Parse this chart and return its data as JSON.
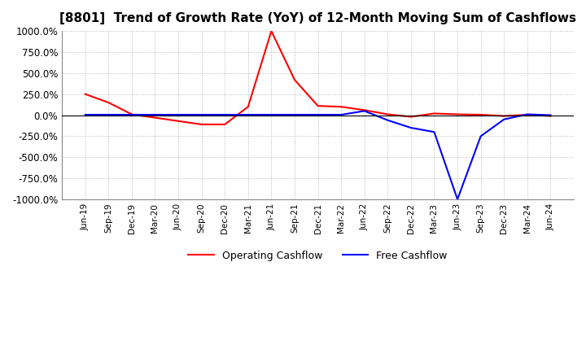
{
  "title": "[8801]  Trend of Growth Rate (YoY) of 12-Month Moving Sum of Cashflows",
  "title_fontsize": 11,
  "ylim": [
    -1000,
    1000
  ],
  "yticks": [
    1000,
    750,
    500,
    250,
    0,
    -250,
    -500,
    -750,
    -1000
  ],
  "background_color": "#ffffff",
  "plot_bg_color": "#ffffff",
  "grid_color": "#aaaaaa",
  "legend_labels": [
    "Operating Cashflow",
    "Free Cashflow"
  ],
  "legend_colors": [
    "#ff0000",
    "#0000ff"
  ],
  "x_labels": [
    "Jun-19",
    "Sep-19",
    "Dec-19",
    "Mar-20",
    "Jun-20",
    "Sep-20",
    "Dec-20",
    "Mar-21",
    "Jun-21",
    "Sep-21",
    "Dec-21",
    "Mar-22",
    "Jun-22",
    "Sep-22",
    "Dec-22",
    "Mar-23",
    "Jun-23",
    "Sep-23",
    "Dec-23",
    "Mar-24",
    "Jun-24"
  ],
  "operating_cashflow": [
    250,
    150,
    10,
    -30,
    -70,
    -110,
    -110,
    100,
    1000,
    420,
    110,
    100,
    60,
    10,
    -20,
    20,
    10,
    5,
    -10,
    5,
    -10
  ],
  "free_cashflow": [
    5,
    5,
    5,
    5,
    5,
    5,
    5,
    5,
    5,
    5,
    5,
    5,
    50,
    -60,
    -150,
    -200,
    -1000,
    -250,
    -50,
    10,
    0
  ]
}
